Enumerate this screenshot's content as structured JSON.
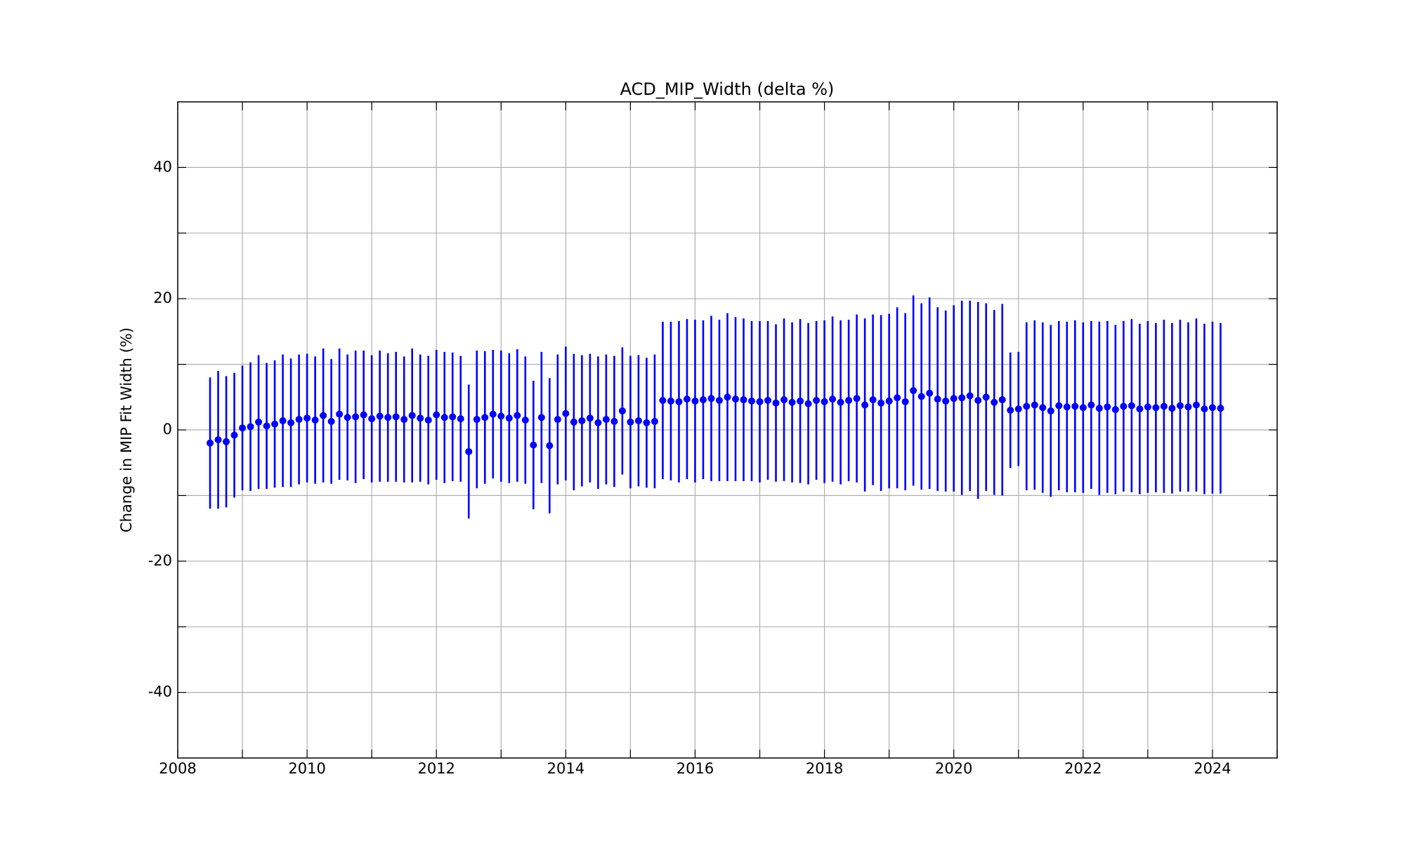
{
  "chart_data": {
    "type": "errorbar",
    "title": "ACD_MIP_Width (delta %)",
    "y_label": "Change in MIP Fit Width (%)",
    "xlim": [
      2008,
      2025
    ],
    "xticks": [
      2008,
      2010,
      2012,
      2014,
      2016,
      2018,
      2020,
      2022,
      2024
    ],
    "minor_xticks": [
      2009,
      2011,
      2013,
      2015,
      2017,
      2019,
      2021,
      2023,
      2025
    ],
    "ylim": [
      -50,
      50
    ],
    "yticks": [
      -40,
      -20,
      0,
      20,
      40
    ],
    "minor_yticks": [
      -30,
      -10,
      10,
      30
    ],
    "grid": true,
    "series": [
      {
        "color": "#0000ff",
        "x": [
          2008.5,
          2008.625,
          2008.75,
          2008.875,
          2009,
          2009.125,
          2009.25,
          2009.375,
          2009.5,
          2009.625,
          2009.75,
          2009.875,
          2010,
          2010.125,
          2010.25,
          2010.375,
          2010.5,
          2010.625,
          2010.75,
          2010.875,
          2011,
          2011.125,
          2011.25,
          2011.375,
          2011.5,
          2011.625,
          2011.75,
          2011.875,
          2012,
          2012.125,
          2012.25,
          2012.375,
          2012.5,
          2012.625,
          2012.75,
          2012.875,
          2013,
          2013.125,
          2013.25,
          2013.375,
          2013.5,
          2013.625,
          2013.75,
          2013.875,
          2014,
          2014.125,
          2014.25,
          2014.375,
          2014.5,
          2014.625,
          2014.75,
          2014.875,
          2015,
          2015.125,
          2015.25,
          2015.375,
          2015.5,
          2015.625,
          2015.75,
          2015.875,
          2016,
          2016.125,
          2016.25,
          2016.375,
          2016.5,
          2016.625,
          2016.75,
          2016.875,
          2017,
          2017.125,
          2017.25,
          2017.375,
          2017.5,
          2017.625,
          2017.75,
          2017.875,
          2018,
          2018.125,
          2018.25,
          2018.375,
          2018.5,
          2018.625,
          2018.75,
          2018.875,
          2019,
          2019.125,
          2019.25,
          2019.375,
          2019.5,
          2019.625,
          2019.75,
          2019.875,
          2020,
          2020.125,
          2020.25,
          2020.375,
          2020.5,
          2020.625,
          2020.75,
          2020.875,
          2021,
          2021.125,
          2021.25,
          2021.375,
          2021.5,
          2021.625,
          2021.75,
          2021.875,
          2022,
          2022.125,
          2022.25,
          2022.375,
          2022.5,
          2022.625,
          2022.75,
          2022.875,
          2023,
          2023.125,
          2023.25,
          2023.375,
          2023.5,
          2023.625,
          2023.75,
          2023.875,
          2024,
          2024.125
        ],
        "values": [
          -2,
          -1.5,
          -1.8,
          -0.8,
          0.3,
          0.5,
          1.2,
          0.6,
          0.9,
          1.4,
          1.1,
          1.6,
          1.8,
          1.5,
          2.2,
          1.3,
          2.4,
          1.9,
          2.0,
          2.3,
          1.7,
          2.1,
          1.9,
          2.0,
          1.6,
          2.2,
          1.8,
          1.5,
          2.3,
          1.9,
          2.0,
          1.7,
          -3.3,
          1.6,
          1.9,
          2.4,
          2.1,
          1.8,
          2.2,
          1.5,
          -2.3,
          1.9,
          -2.4,
          1.6,
          2.5,
          1.2,
          1.4,
          1.8,
          1.1,
          1.6,
          1.3,
          2.9,
          1.2,
          1.4,
          1.1,
          1.3,
          4.5,
          4.4,
          4.3,
          4.7,
          4.4,
          4.6,
          4.8,
          4.5,
          5.0,
          4.7,
          4.6,
          4.4,
          4.3,
          4.5,
          4.1,
          4.6,
          4.2,
          4.4,
          4.0,
          4.5,
          4.3,
          4.7,
          4.2,
          4.5,
          4.8,
          3.8,
          4.6,
          4.1,
          4.4,
          4.9,
          4.3,
          6.0,
          5.1,
          5.6,
          4.7,
          4.4,
          4.8,
          4.9,
          5.2,
          4.5,
          5.0,
          4.2,
          4.6,
          3.0,
          3.2,
          3.6,
          3.8,
          3.4,
          2.9,
          3.7,
          3.5,
          3.6,
          3.4,
          3.8,
          3.3,
          3.5,
          3.1,
          3.6,
          3.7,
          3.2,
          3.5,
          3.4,
          3.6,
          3.3,
          3.7,
          3.5,
          3.8,
          3.2,
          3.4,
          3.3
        ],
        "errors": [
          10,
          10.5,
          10,
          9.5,
          9.5,
          9.8,
          10.2,
          9.6,
          9.7,
          10.1,
          9.8,
          9.9,
          9.8,
          9.7,
          10.2,
          9.5,
          10.0,
          9.6,
          10.1,
          9.8,
          9.7,
          10.0,
          9.8,
          9.9,
          9.6,
          10.2,
          9.7,
          9.8,
          9.9,
          10.0,
          9.8,
          9.6,
          10.2,
          10.5,
          10.1,
          9.8,
          10.0,
          9.9,
          10.1,
          9.7,
          9.8,
          10.0,
          10.3,
          9.9,
          10.2,
          10.4,
          10.0,
          9.8,
          10.1,
          9.9,
          10.0,
          9.7,
          10.1,
          10.0,
          9.9,
          10.2,
          12.0,
          12.1,
          12.3,
          12.2,
          12.4,
          12.1,
          12.6,
          12.3,
          12.8,
          12.5,
          12.4,
          12.2,
          12.3,
          12.1,
          12.0,
          12.4,
          12.2,
          12.5,
          12.3,
          12.1,
          12.4,
          12.6,
          12.5,
          12.3,
          12.8,
          13.2,
          13.0,
          13.4,
          13.3,
          13.8,
          13.5,
          14.5,
          14.2,
          14.6,
          14.0,
          13.8,
          14.2,
          14.8,
          14.5,
          15.0,
          14.3,
          14.1,
          14.6,
          8.8,
          8.7,
          12.8,
          12.9,
          13.0,
          13.1,
          12.9,
          13.0,
          13.1,
          13.0,
          12.8,
          13.2,
          13.1,
          12.9,
          13.0,
          13.2,
          13.0,
          13.1,
          12.9,
          13.2,
          13.0,
          13.1,
          12.9,
          13.2,
          13.0,
          13.1,
          13.0
        ]
      }
    ]
  }
}
